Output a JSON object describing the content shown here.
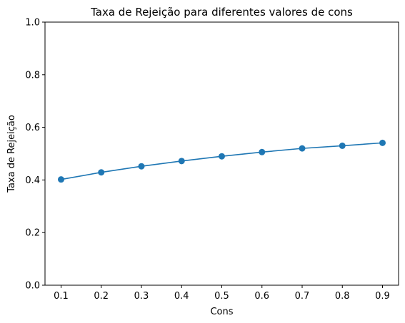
{
  "chart_data": {
    "type": "line",
    "title": "Taxa de Rejeição para diferentes valores de cons",
    "xlabel": "Cons",
    "ylabel": "Taxa de Rejeição",
    "x": [
      0.1,
      0.2,
      0.3,
      0.4,
      0.5,
      0.6,
      0.7,
      0.8,
      0.9
    ],
    "series": [
      {
        "values": [
          0.402,
          0.429,
          0.452,
          0.472,
          0.49,
          0.506,
          0.52,
          0.53,
          0.541
        ],
        "color": "#1f77b4",
        "marker": "circle"
      }
    ],
    "xlim": [
      0.06,
      0.94
    ],
    "ylim": [
      0,
      1
    ],
    "xticks": [
      "0.1",
      "0.2",
      "0.3",
      "0.4",
      "0.5",
      "0.6",
      "0.7",
      "0.8",
      "0.9"
    ],
    "yticks": [
      "0.0",
      "0.2",
      "0.4",
      "0.6",
      "0.8",
      "1.0"
    ],
    "grid": false,
    "legend": false
  }
}
